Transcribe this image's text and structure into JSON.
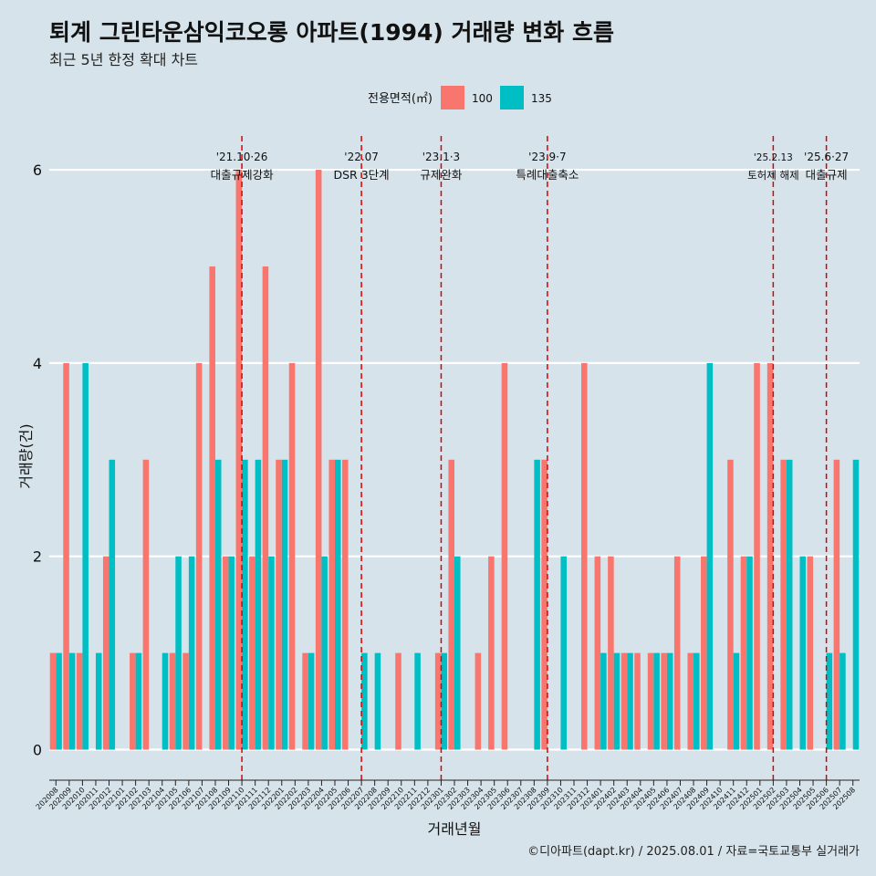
{
  "title": "퇴계 그린타운삼익코오롱 아파트(1994) 거래량 변화 흐름",
  "subtitle": "최근 5년 한정 확대 차트",
  "caption": "©디아파트(dapt.kr) / 2025.08.01 / 자료=국토교통부 실거래가",
  "colors": {
    "s100": "#f8766d",
    "s135": "#00bfc4",
    "background": "#d6e3ea",
    "grid": "#ffffff",
    "event": "#e00000"
  },
  "chart_data": {
    "type": "bar",
    "xlabel": "거래년월",
    "ylabel": "거래량(건)",
    "ylim": [
      -0.25,
      6.35
    ],
    "yticks": [
      0,
      2,
      4,
      6
    ],
    "legend": {
      "title": "전용면적(㎡)",
      "position": "top"
    },
    "categories": [
      "202008",
      "202009",
      "202010",
      "202011",
      "202012",
      "202101",
      "202102",
      "202103",
      "202104",
      "202105",
      "202106",
      "202107",
      "202108",
      "202109",
      "202110",
      "202111",
      "202112",
      "202201",
      "202202",
      "202203",
      "202204",
      "202205",
      "202206",
      "202207",
      "202208",
      "202209",
      "202210",
      "202211",
      "202212",
      "202301",
      "202302",
      "202303",
      "202304",
      "202305",
      "202306",
      "202307",
      "202308",
      "202309",
      "202310",
      "202311",
      "202312",
      "202401",
      "202402",
      "202403",
      "202404",
      "202405",
      "202406",
      "202407",
      "202408",
      "202409",
      "202410",
      "202411",
      "202412",
      "202501",
      "202502",
      "202503",
      "202504",
      "202505",
      "202506",
      "202507",
      "202508"
    ],
    "series": [
      {
        "name": "100",
        "values": [
          1,
          4,
          1,
          0,
          2,
          0,
          1,
          3,
          0,
          1,
          1,
          4,
          5,
          2,
          6,
          2,
          5,
          3,
          4,
          1,
          6,
          3,
          3,
          0,
          0,
          0,
          1,
          0,
          0,
          1,
          3,
          0,
          1,
          2,
          4,
          0,
          0,
          3,
          0,
          0,
          4,
          2,
          2,
          1,
          1,
          1,
          1,
          2,
          1,
          2,
          0,
          3,
          2,
          4,
          4,
          3,
          0,
          2,
          0,
          3,
          0
        ]
      },
      {
        "name": "135",
        "values": [
          1,
          1,
          4,
          1,
          3,
          0,
          1,
          0,
          1,
          2,
          2,
          0,
          3,
          2,
          3,
          3,
          2,
          3,
          0,
          1,
          2,
          3,
          0,
          1,
          1,
          0,
          0,
          1,
          0,
          1,
          2,
          0,
          0,
          0,
          0,
          0,
          3,
          0,
          2,
          0,
          0,
          1,
          1,
          1,
          0,
          1,
          1,
          0,
          1,
          4,
          0,
          1,
          2,
          0,
          0,
          3,
          2,
          0,
          1,
          1,
          3
        ]
      }
    ],
    "events": [
      {
        "month": "202110",
        "date": "'21.10·26",
        "label": "대출규제강화"
      },
      {
        "month": "202207",
        "date": "'22.07",
        "label": "DSR 3단계"
      },
      {
        "month": "202301",
        "date": "'23.1·3",
        "label": "규제완화"
      },
      {
        "month": "202309",
        "date": "'23.9·7",
        "label": "특례대출축소"
      },
      {
        "month": "202502",
        "date": "'25.2.13",
        "label": "토허제 해제"
      },
      {
        "month": "202506",
        "date": "'25.6·27",
        "label": "대출규제"
      }
    ]
  }
}
